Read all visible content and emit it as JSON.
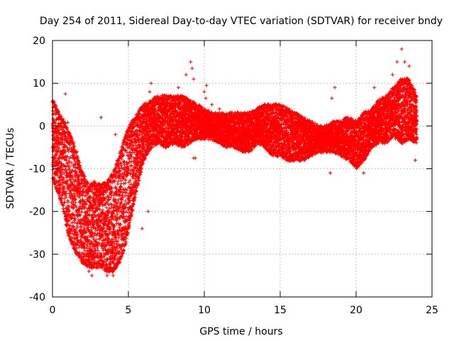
{
  "chart_data": {
    "type": "scatter",
    "title": "Day 254 of 2011, Sidereal Day-to-day VTEC variation (SDTVAR) for receiver bndy",
    "xlabel": "GPS time / hours",
    "ylabel": "SDTVAR / TECUs",
    "xlim": [
      0,
      25
    ],
    "ylim": [
      -40,
      20
    ],
    "xticks": [
      0,
      5,
      10,
      15,
      20,
      25
    ],
    "yticks": [
      -40,
      -30,
      -20,
      -10,
      0,
      10,
      20
    ],
    "grid": true,
    "marker": "plus",
    "series": [
      {
        "name": "SDTVAR",
        "color": "#ff0000",
        "envelope": {
          "x": [
            0.0,
            0.2,
            0.4,
            0.6,
            0.8,
            1.0,
            1.3,
            1.6,
            2.0,
            2.4,
            2.8,
            3.2,
            3.6,
            4.0,
            4.4,
            4.8,
            5.2,
            5.6,
            6.0,
            6.5,
            7.0,
            7.5,
            8.0,
            8.5,
            9.0,
            9.5,
            10.0,
            10.5,
            11.0,
            11.5,
            12.0,
            12.5,
            13.0,
            13.5,
            14.0,
            14.5,
            15.0,
            15.5,
            16.0,
            16.5,
            17.0,
            17.5,
            18.0,
            18.5,
            19.0,
            19.5,
            20.0,
            20.5,
            21.0,
            21.5,
            22.0,
            22.5,
            23.0,
            23.5,
            24.0
          ],
          "upper": [
            5,
            4,
            2,
            1,
            0,
            -2,
            -4,
            -8,
            -12,
            -15,
            -14,
            -15,
            -14,
            -12,
            -8,
            -3,
            0,
            2,
            4,
            5,
            6,
            6,
            6,
            6,
            5,
            4,
            3,
            2,
            2,
            2,
            2,
            2,
            2,
            3,
            4,
            4,
            4,
            3,
            2,
            1,
            0,
            -1,
            -1,
            0,
            0,
            1,
            0,
            2,
            3,
            5,
            6,
            8,
            10,
            10,
            6
          ],
          "lower": [
            -12,
            -13,
            -15,
            -17,
            -20,
            -24,
            -27,
            -29,
            -31,
            -32,
            -32,
            -32,
            -33,
            -33,
            -31,
            -27,
            -20,
            -13,
            -7,
            -4,
            -3,
            -4,
            -3,
            -4,
            -3,
            -2,
            -2,
            -2,
            -3,
            -4,
            -4,
            -5,
            -5,
            -3,
            -4,
            -6,
            -6,
            -7,
            -7,
            -7,
            -6,
            -5,
            -5,
            -5,
            -6,
            -7,
            -9,
            -7,
            -4,
            -3,
            -3,
            -1,
            -3,
            -2,
            -3
          ]
        },
        "outliers": [
          [
            0.4,
            3.5
          ],
          [
            0.6,
            -2
          ],
          [
            0.85,
            7.5
          ],
          [
            1.0,
            0.8
          ],
          [
            1.1,
            -14
          ],
          [
            1.4,
            -4
          ],
          [
            1.6,
            -6
          ],
          [
            2.4,
            -34
          ],
          [
            2.6,
            -35
          ],
          [
            3.1,
            -25
          ],
          [
            3.2,
            2
          ],
          [
            3.35,
            -17
          ],
          [
            3.6,
            -35
          ],
          [
            4.0,
            -35
          ],
          [
            4.15,
            -2
          ],
          [
            4.7,
            -20
          ],
          [
            5.2,
            -15
          ],
          [
            5.35,
            -17
          ],
          [
            5.9,
            -24
          ],
          [
            6.3,
            -20
          ],
          [
            6.4,
            8
          ],
          [
            6.5,
            10
          ],
          [
            7.3,
            4
          ],
          [
            8.3,
            9
          ],
          [
            8.8,
            12
          ],
          [
            9.1,
            15
          ],
          [
            9.2,
            13.5
          ],
          [
            9.3,
            11
          ],
          [
            9.3,
            -7.5
          ],
          [
            9.4,
            -7.5
          ],
          [
            10.0,
            8
          ],
          [
            10.1,
            6.5
          ],
          [
            10.15,
            9.5
          ],
          [
            10.5,
            5
          ],
          [
            11.0,
            4
          ],
          [
            12.8,
            -5.5
          ],
          [
            13.05,
            0
          ],
          [
            18.3,
            -11
          ],
          [
            18.6,
            9
          ],
          [
            18.4,
            6.5
          ],
          [
            18.9,
            -2
          ],
          [
            19.3,
            2
          ],
          [
            19.7,
            -6
          ],
          [
            20.5,
            -11
          ],
          [
            21.2,
            9
          ],
          [
            21.4,
            5
          ],
          [
            22.4,
            12
          ],
          [
            22.7,
            15
          ],
          [
            23.0,
            18
          ],
          [
            23.2,
            15
          ],
          [
            23.5,
            14
          ],
          [
            23.9,
            -8
          ],
          [
            22.6,
            -3
          ],
          [
            20.8,
            3
          ]
        ]
      }
    ]
  }
}
